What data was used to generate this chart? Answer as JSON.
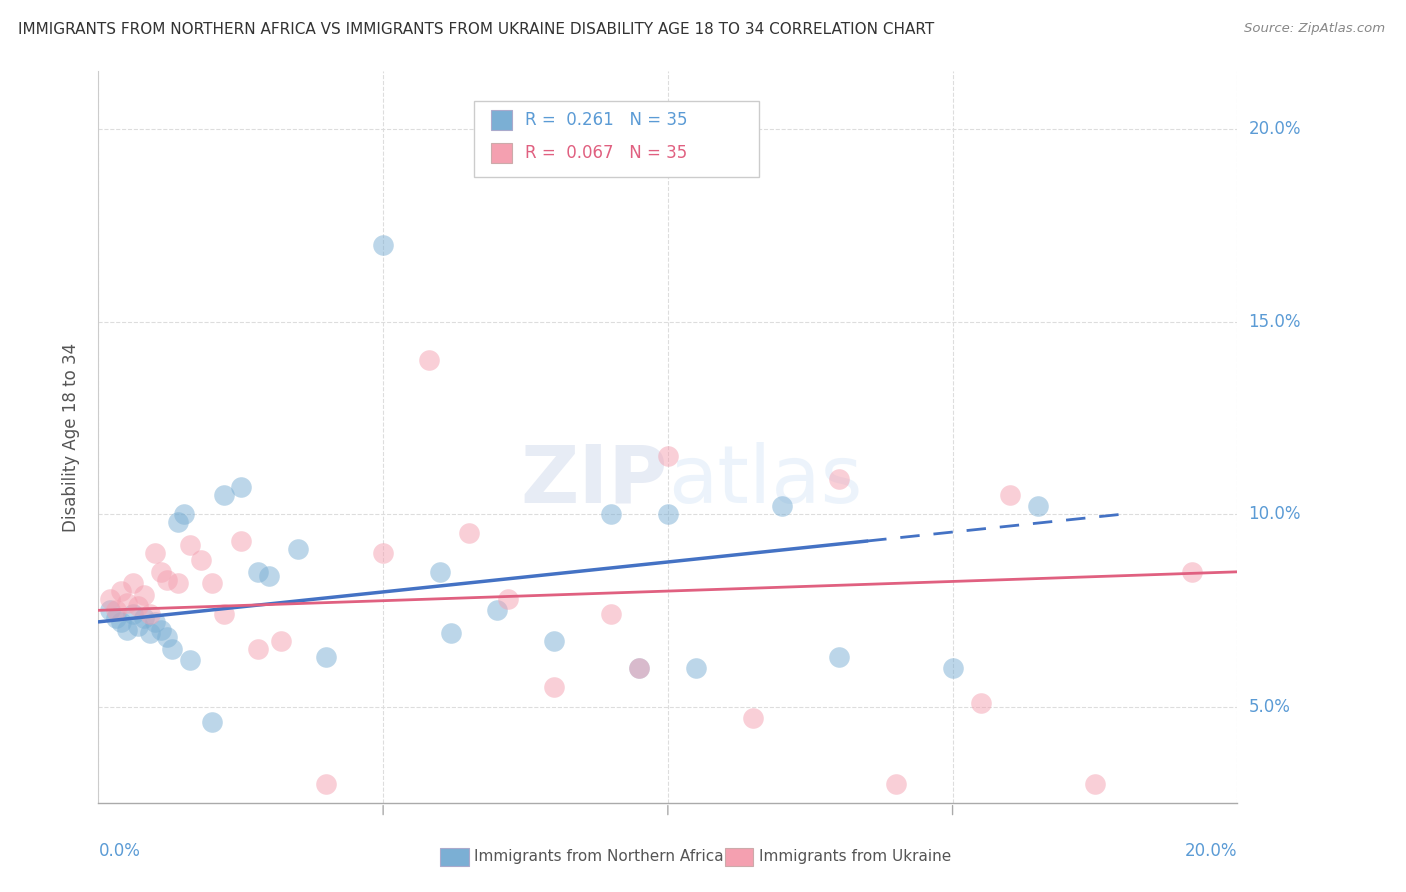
{
  "title": "IMMIGRANTS FROM NORTHERN AFRICA VS IMMIGRANTS FROM UKRAINE DISABILITY AGE 18 TO 34 CORRELATION CHART",
  "source": "Source: ZipAtlas.com",
  "ylabel": "Disability Age 18 to 34",
  "xlim": [
    0.0,
    0.2
  ],
  "ylim": [
    0.025,
    0.215
  ],
  "xticks": [
    0.0,
    0.05,
    0.1,
    0.15,
    0.2
  ],
  "yticks": [
    0.05,
    0.1,
    0.15,
    0.2
  ],
  "blue_R": "0.261",
  "blue_N": "35",
  "pink_R": "0.067",
  "pink_N": "35",
  "blue_color": "#7BAFD4",
  "pink_color": "#F4A0B0",
  "blue_line_color": "#4472C4",
  "pink_line_color": "#E06080",
  "blue_label": "Immigrants from Northern Africa",
  "pink_label": "Immigrants from Ukraine",
  "watermark": "ZIPatlas",
  "tick_color": "#5B9BD5",
  "blue_scatter_x": [
    0.002,
    0.003,
    0.004,
    0.005,
    0.006,
    0.007,
    0.008,
    0.009,
    0.01,
    0.011,
    0.012,
    0.013,
    0.014,
    0.015,
    0.016,
    0.02,
    0.022,
    0.025,
    0.028,
    0.03,
    0.035,
    0.04,
    0.05,
    0.06,
    0.062,
    0.07,
    0.08,
    0.09,
    0.095,
    0.1,
    0.105,
    0.12,
    0.13,
    0.15,
    0.165
  ],
  "blue_scatter_y": [
    0.075,
    0.073,
    0.072,
    0.07,
    0.074,
    0.071,
    0.073,
    0.069,
    0.072,
    0.07,
    0.068,
    0.065,
    0.098,
    0.1,
    0.062,
    0.046,
    0.105,
    0.107,
    0.085,
    0.084,
    0.091,
    0.063,
    0.17,
    0.085,
    0.069,
    0.075,
    0.067,
    0.1,
    0.06,
    0.1,
    0.06,
    0.102,
    0.063,
    0.06,
    0.102
  ],
  "pink_scatter_x": [
    0.002,
    0.003,
    0.004,
    0.005,
    0.006,
    0.007,
    0.008,
    0.009,
    0.01,
    0.011,
    0.012,
    0.014,
    0.016,
    0.018,
    0.02,
    0.022,
    0.025,
    0.028,
    0.032,
    0.04,
    0.05,
    0.058,
    0.065,
    0.072,
    0.08,
    0.09,
    0.095,
    0.1,
    0.115,
    0.13,
    0.14,
    0.155,
    0.16,
    0.175,
    0.192
  ],
  "pink_scatter_y": [
    0.078,
    0.075,
    0.08,
    0.077,
    0.082,
    0.076,
    0.079,
    0.074,
    0.09,
    0.085,
    0.083,
    0.082,
    0.092,
    0.088,
    0.082,
    0.074,
    0.093,
    0.065,
    0.067,
    0.03,
    0.09,
    0.14,
    0.095,
    0.078,
    0.055,
    0.074,
    0.06,
    0.115,
    0.047,
    0.109,
    0.03,
    0.051,
    0.105,
    0.03,
    0.085
  ],
  "blue_line_x_start": 0.0,
  "blue_line_x_solid_end": 0.135,
  "blue_line_x_end": 0.18,
  "pink_line_x_start": 0.0,
  "pink_line_x_end": 0.2,
  "blue_line_y_start": 0.072,
  "blue_line_y_end": 0.1,
  "pink_line_y_start": 0.075,
  "pink_line_y_end": 0.085
}
